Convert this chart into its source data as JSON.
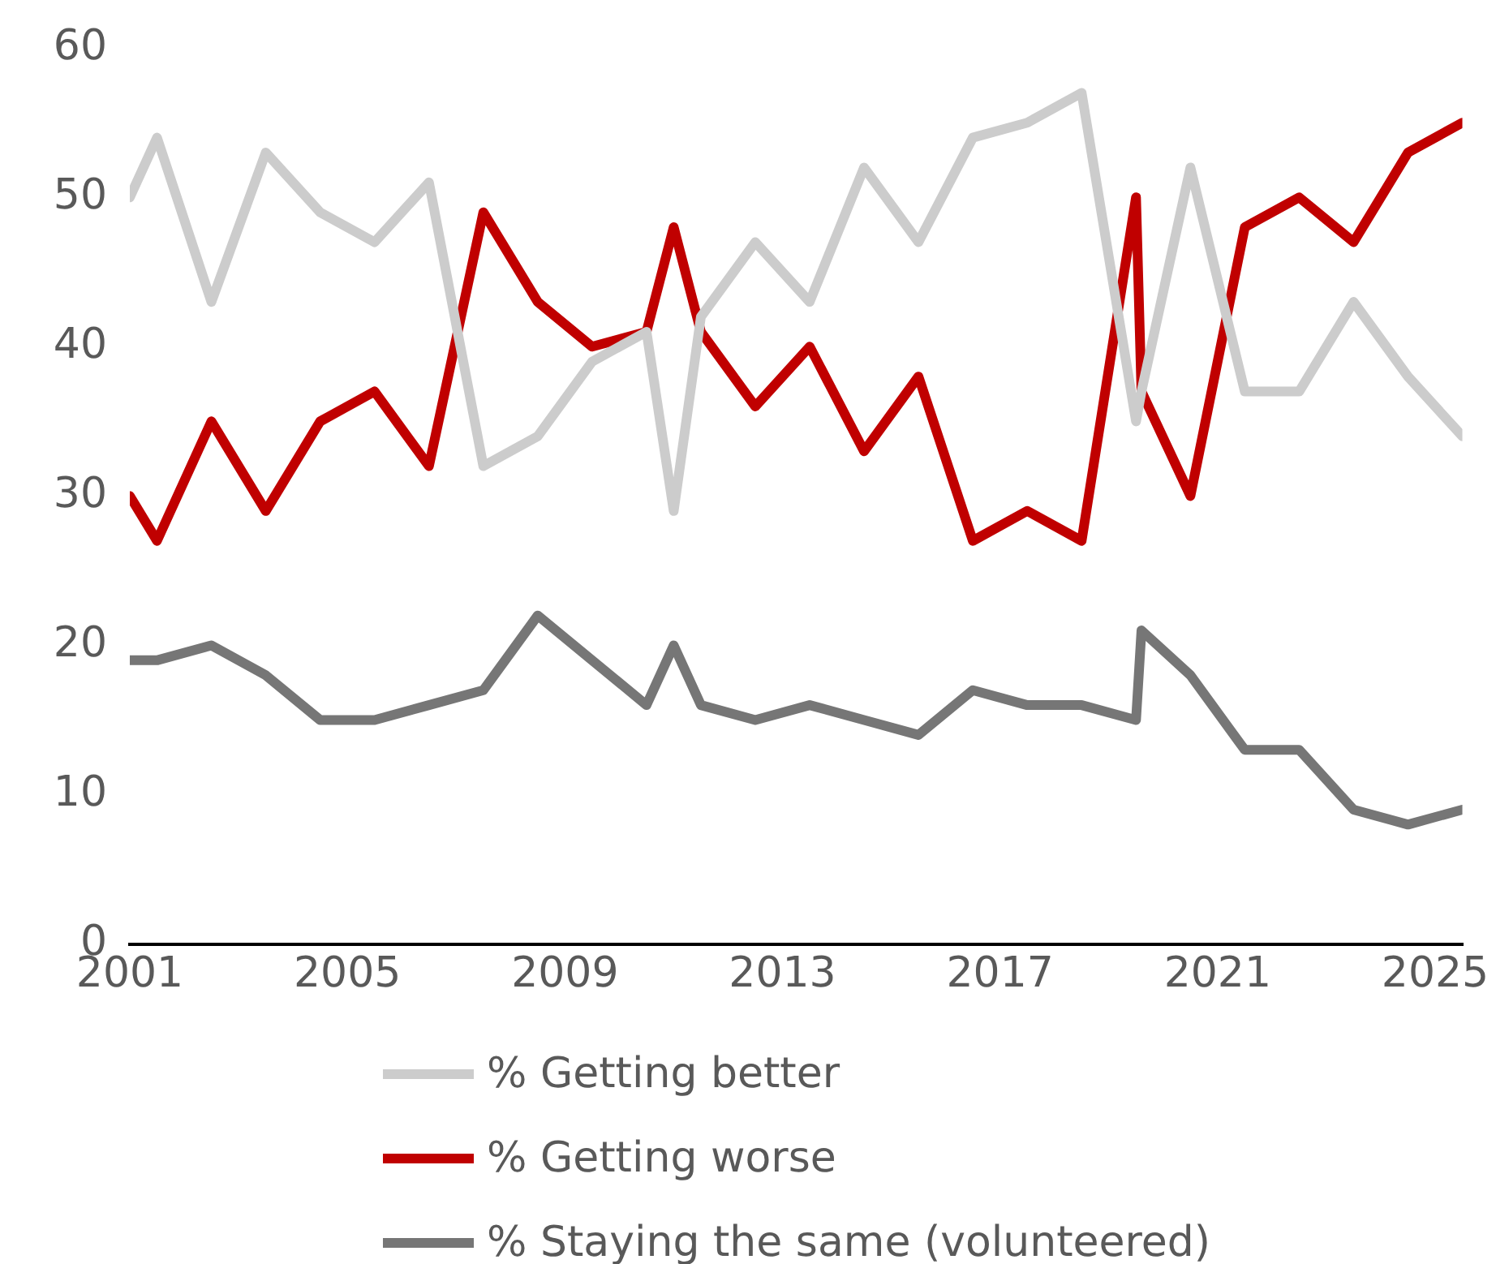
{
  "chart_data": {
    "type": "line",
    "x": [
      2001,
      2001.5,
      2002.5,
      2003.5,
      2004.5,
      2005.5,
      2006.5,
      2007.5,
      2008.5,
      2009.5,
      2010.5,
      2011,
      2011.5,
      2012.5,
      2013.5,
      2014.5,
      2015.5,
      2016.5,
      2017.5,
      2018.5,
      2019.5,
      2019.6,
      2020.5,
      2021.5,
      2022.5,
      2023.5,
      2024.5,
      2025.5
    ],
    "series": [
      {
        "name": "% Getting better",
        "color": "#cccccc",
        "values": [
          50,
          54,
          43,
          53,
          49,
          47,
          51,
          32,
          34,
          39,
          41,
          29,
          42,
          47,
          43,
          52,
          47,
          54,
          55,
          57,
          35,
          37,
          52,
          37,
          37,
          43,
          38,
          34
        ]
      },
      {
        "name": "% Getting worse",
        "color": "#c00000",
        "values": [
          30,
          27,
          35,
          29,
          35,
          37,
          32,
          49,
          43,
          40,
          41,
          48,
          41,
          36,
          40,
          33,
          38,
          27,
          29,
          27,
          50,
          37,
          30,
          48,
          50,
          47,
          53,
          55
        ]
      },
      {
        "name": "% Staying the same (volunteered)",
        "color": "#767676",
        "values": [
          19,
          19,
          20,
          18,
          15,
          15,
          16,
          17,
          22,
          19,
          16,
          20,
          16,
          15,
          16,
          15,
          14,
          17,
          16,
          16,
          15,
          21,
          18,
          13,
          13,
          9,
          8,
          9
        ]
      }
    ],
    "xlim": [
      2001,
      2025.5
    ],
    "xticks": [
      2001,
      2005,
      2009,
      2013,
      2017,
      2021,
      2025
    ],
    "ylim": [
      0,
      60
    ],
    "yticks": [
      0,
      10,
      20,
      30,
      40,
      50,
      60
    ],
    "grid": false,
    "legend": "bottom",
    "marker": "none",
    "line_style": "solid"
  }
}
